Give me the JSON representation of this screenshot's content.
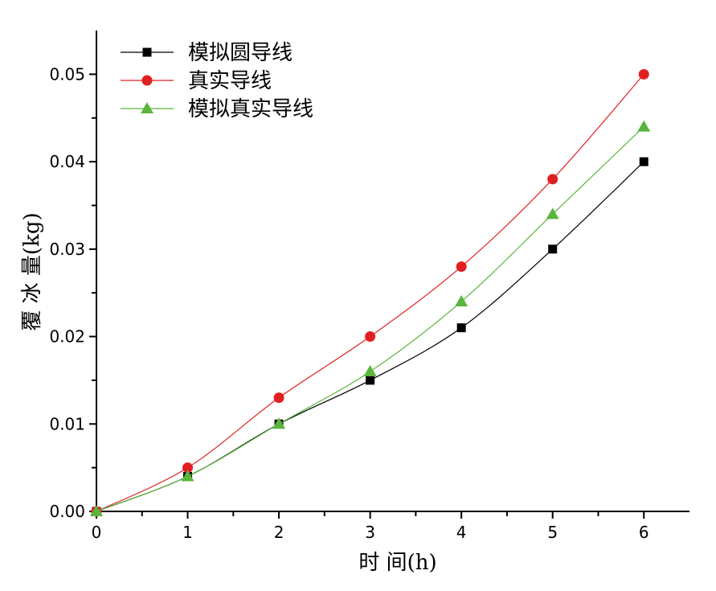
{
  "chart_data": {
    "type": "line",
    "title": "",
    "xlabel": "时 间(h)",
    "ylabel": "覆 冰 量(kg)",
    "xlim": [
      0,
      6.5
    ],
    "ylim": [
      0,
      0.055
    ],
    "xticks": [
      "0",
      "1",
      "2",
      "3",
      "4",
      "5",
      "6"
    ],
    "yticks": [
      "0.00",
      "0.01",
      "0.02",
      "0.03",
      "0.04",
      "0.05"
    ],
    "grid": false,
    "legend_position": "top-left",
    "x": [
      0,
      1,
      2,
      3,
      4,
      5,
      6
    ],
    "series": [
      {
        "name": "模拟圆导线",
        "marker": "square",
        "color": "#000000",
        "values": [
          0,
          0.004,
          0.01,
          0.015,
          0.021,
          0.03,
          0.04
        ]
      },
      {
        "name": "真实导线",
        "marker": "circle",
        "color": "#e02020",
        "values": [
          0,
          0.005,
          0.013,
          0.02,
          0.028,
          0.038,
          0.05
        ]
      },
      {
        "name": "模拟真实导线",
        "marker": "triangle",
        "color": "#5ab53c",
        "values": [
          0,
          0.004,
          0.01,
          0.016,
          0.024,
          0.034,
          0.044
        ]
      }
    ]
  }
}
